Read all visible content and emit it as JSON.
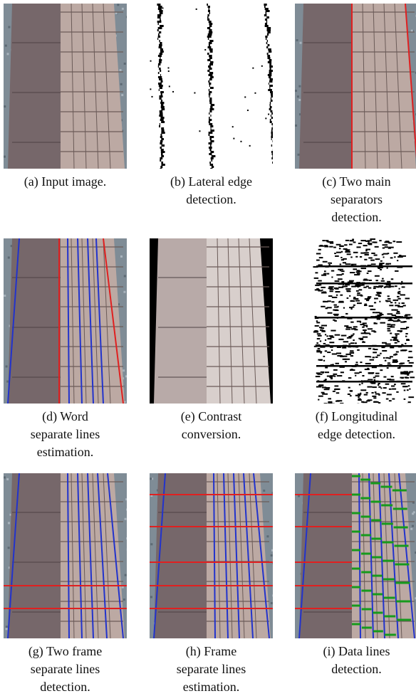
{
  "panels": [
    {
      "lines": [
        "(a) Input image."
      ]
    },
    {
      "lines": [
        "(b) Lateral edge",
        "detection."
      ]
    },
    {
      "lines": [
        "(c) Two main",
        "separators",
        "detection."
      ]
    },
    {
      "lines": [
        "(d) Word",
        "separate lines",
        "estimation."
      ]
    },
    {
      "lines": [
        "(e) Contrast",
        "conversion."
      ]
    },
    {
      "lines": [
        "(f) Longitudinal",
        "edge detection."
      ]
    },
    {
      "lines": [
        "(g) Two frame",
        "separate lines",
        "detection."
      ]
    },
    {
      "lines": [
        "(h) Frame",
        "separate lines",
        "estimation."
      ]
    },
    {
      "lines": [
        "(i) Data lines",
        "detection."
      ]
    }
  ]
}
